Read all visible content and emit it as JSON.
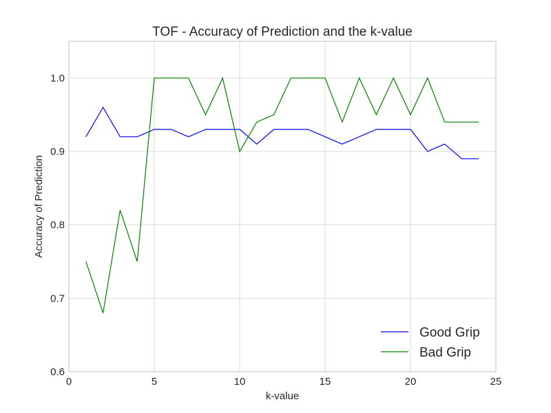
{
  "chart_data": {
    "type": "line",
    "title": "TOF - Accuracy of Prediction and the k-value",
    "xlabel": "k-value",
    "ylabel": "Accuracy of Prediction",
    "xlim": [
      0,
      25
    ],
    "ylim": [
      0.6,
      1.05
    ],
    "xticks": [
      0,
      5,
      10,
      15,
      20,
      25
    ],
    "xtick_labels": [
      "0",
      "5",
      "10",
      "15",
      "20",
      "25"
    ],
    "yticks": [
      0.6,
      0.7,
      0.8,
      0.9,
      1.0
    ],
    "ytick_labels": [
      "0.6",
      "0.7",
      "0.8",
      "0.9",
      "1.0"
    ],
    "grid": true,
    "legend_position": "bottom-right",
    "x": [
      1,
      2,
      3,
      4,
      5,
      6,
      7,
      8,
      9,
      10,
      11,
      12,
      13,
      14,
      15,
      16,
      17,
      18,
      19,
      20,
      21,
      22,
      23,
      24
    ],
    "series": [
      {
        "name": "Good Grip",
        "color": "#0000ff",
        "values": [
          0.92,
          0.96,
          0.92,
          0.92,
          0.93,
          0.93,
          0.92,
          0.93,
          0.93,
          0.93,
          0.91,
          0.93,
          0.93,
          0.93,
          0.92,
          0.91,
          0.92,
          0.93,
          0.93,
          0.93,
          0.9,
          0.91,
          0.89,
          0.89
        ]
      },
      {
        "name": "Bad Grip",
        "color": "#008000",
        "values": [
          0.75,
          0.68,
          0.82,
          0.75,
          1.0,
          1.0,
          1.0,
          0.95,
          1.0,
          0.9,
          0.94,
          0.95,
          1.0,
          1.0,
          1.0,
          0.94,
          1.0,
          0.95,
          1.0,
          0.95,
          1.0,
          0.94,
          0.94,
          0.94
        ]
      }
    ]
  }
}
